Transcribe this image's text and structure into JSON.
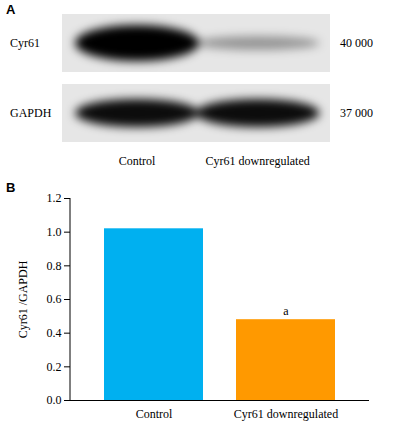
{
  "blot": {
    "panel": "A",
    "rows": [
      {
        "label": "Cyr61",
        "mw": "40 000"
      },
      {
        "label": "GAPDH",
        "mw": "37 000"
      }
    ],
    "lanes": [
      "Control",
      "Cyr61 downregulated"
    ]
  },
  "chart_data": {
    "type": "bar",
    "panel": "B",
    "ylabel": "Cyr61 /GAPDH",
    "categories": [
      "Control",
      "Cyr61 downregulated"
    ],
    "values": [
      1.02,
      0.48
    ],
    "colors": [
      "#00b0f0",
      "#ff9900"
    ],
    "annotations": [
      {
        "category": "Cyr61 downregulated",
        "text": "a"
      }
    ],
    "ylim": [
      0,
      1.2
    ],
    "yticks": [
      {
        "value": 0,
        "label": "0.0"
      },
      0.2,
      0.4,
      0.6,
      0.8,
      {
        "value": 1,
        "label": "1.0"
      },
      1.2
    ],
    "grid": false
  }
}
